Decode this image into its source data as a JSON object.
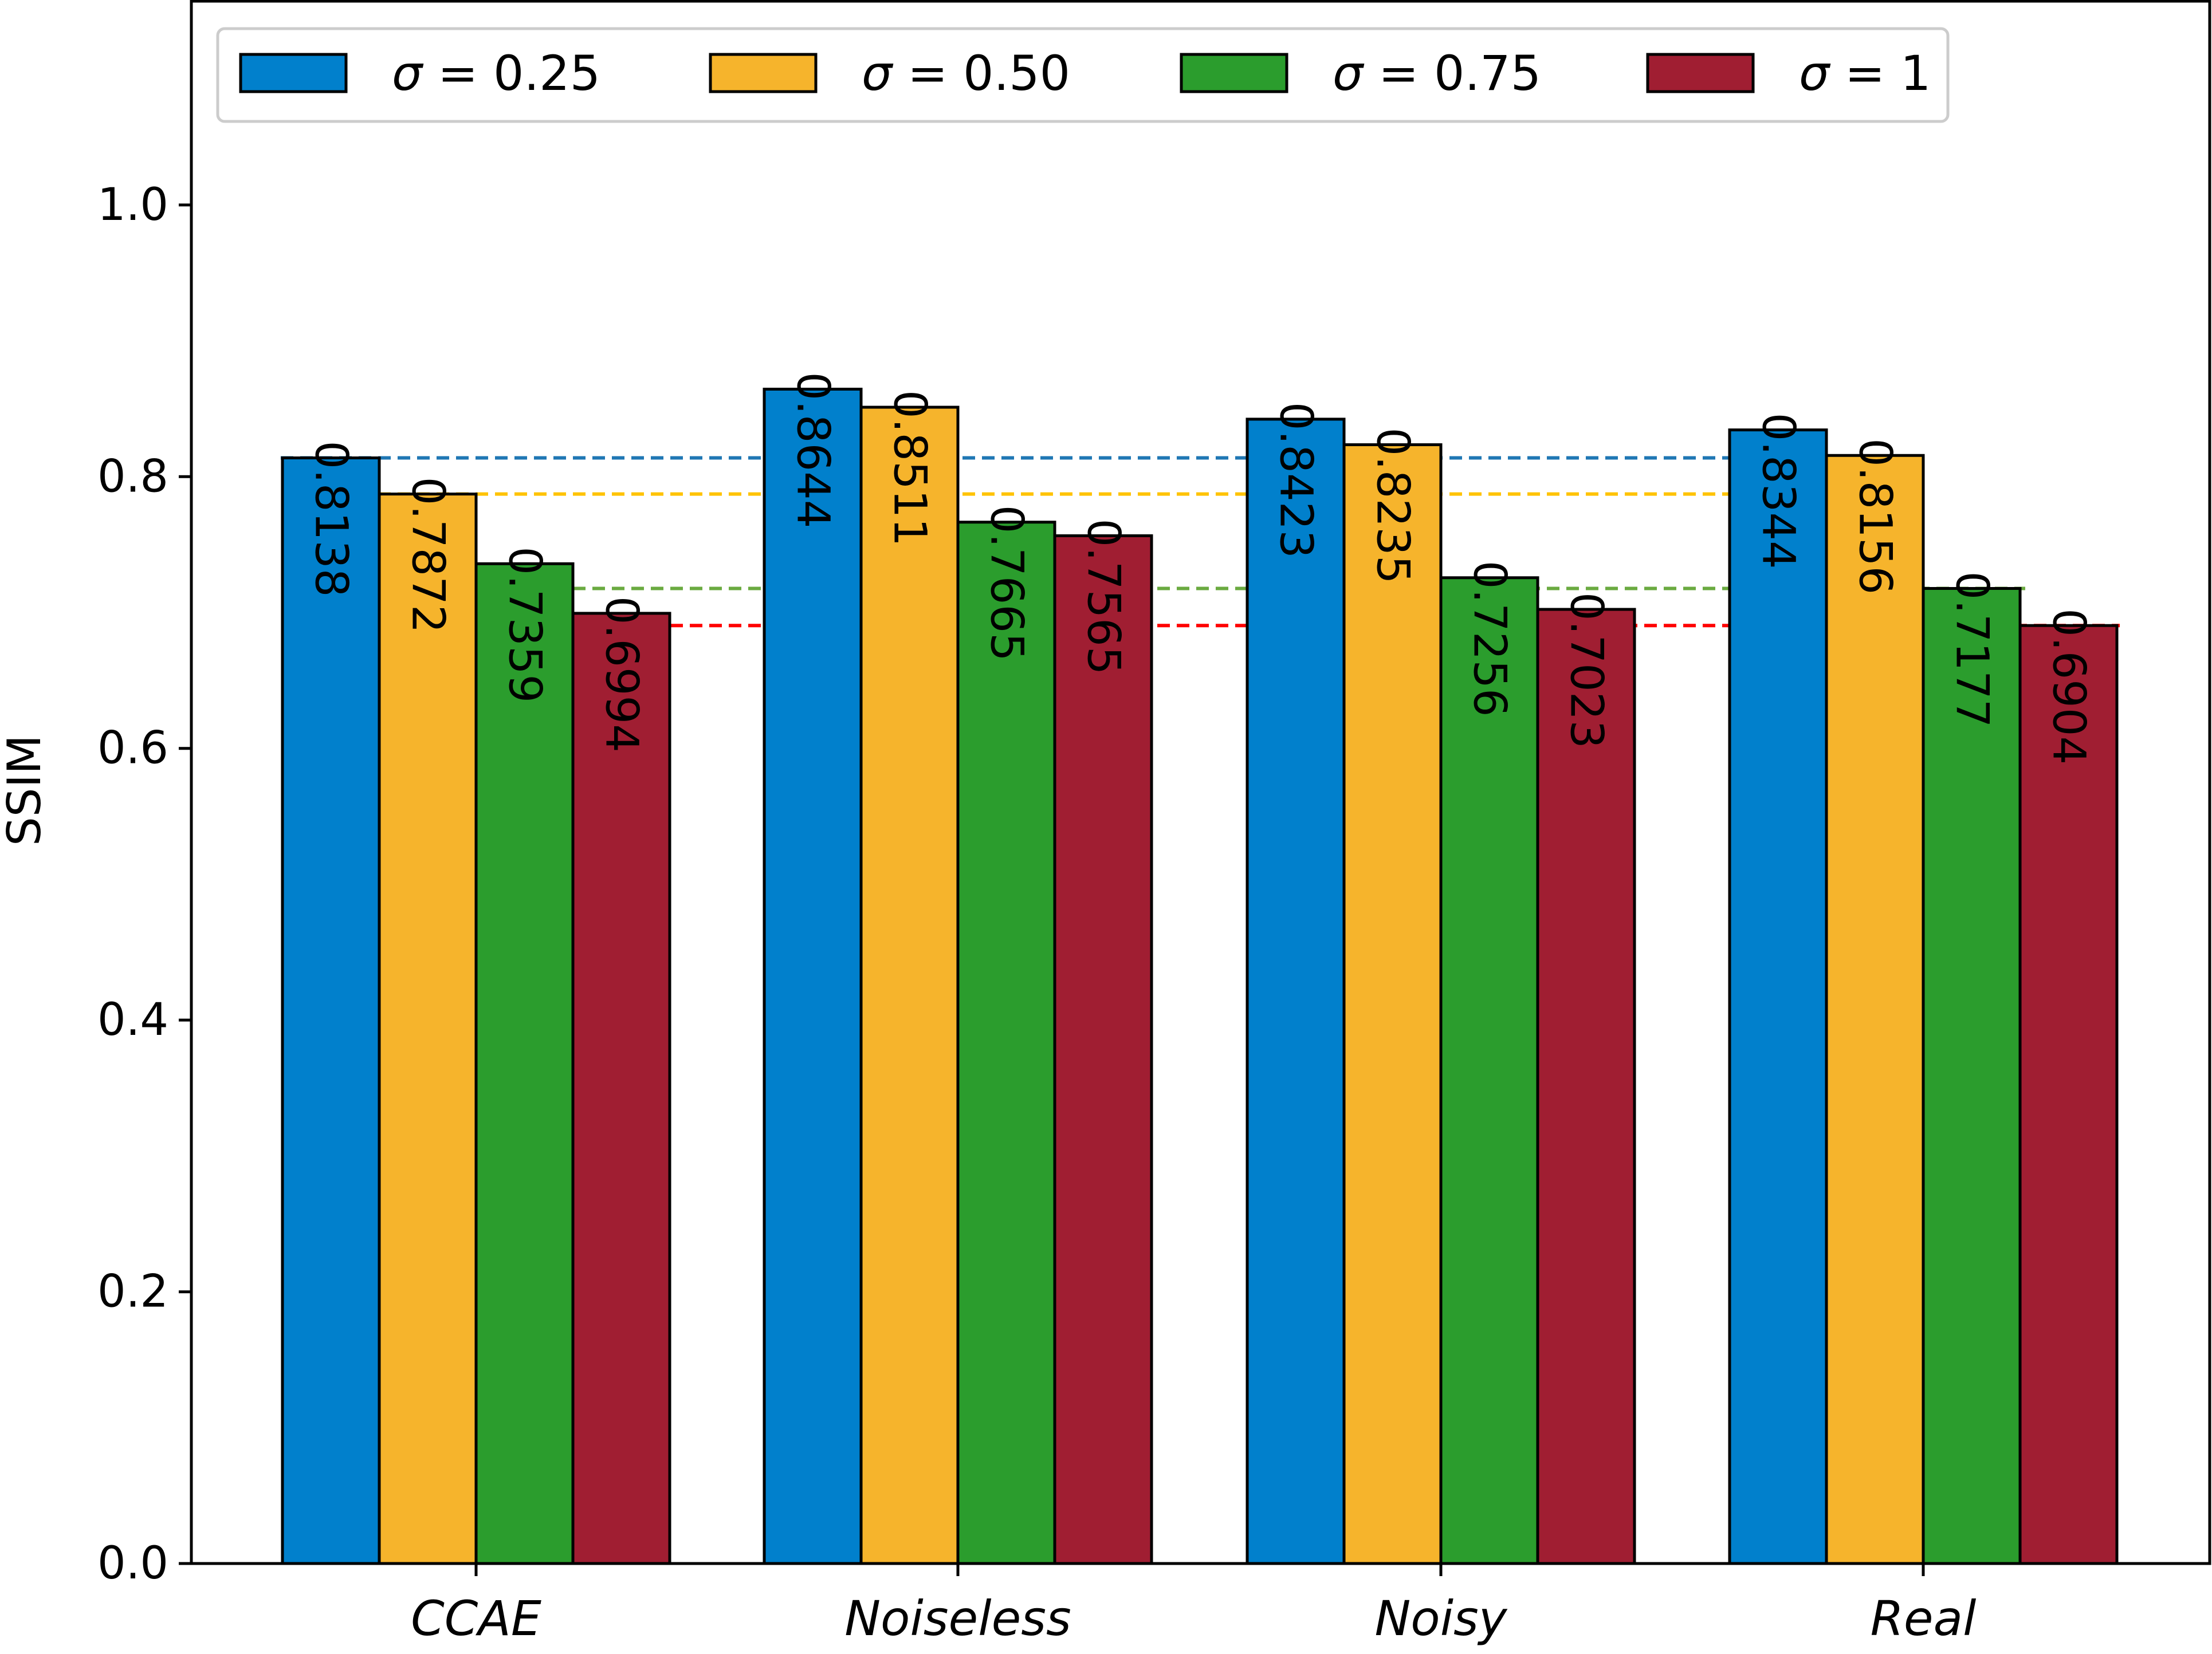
{
  "chart_data": {
    "type": "bar",
    "title": "",
    "xlabel": "",
    "ylabel": "SSIM",
    "ylim": [
      0,
      1.15
    ],
    "yticks": [
      "0.0",
      "0.2",
      "0.4",
      "0.6",
      "0.8",
      "1.0"
    ],
    "legend_position": "top",
    "grid": false,
    "categories": [
      "CCAE",
      "Noiseless",
      "Noisy",
      "Real"
    ],
    "series": [
      {
        "name": "σ = 0.25",
        "symbol": "σ",
        "value_label": "= 0.25",
        "color": "#0180CC",
        "values": [
          0.8138,
          0.8644,
          0.8423,
          0.8344
        ],
        "labels": [
          "0.8138",
          "0.8644",
          "0.8423",
          "0.8344"
        ]
      },
      {
        "name": "σ = 0.50",
        "symbol": "σ",
        "value_label": "= 0.50",
        "color": "#F6B42C",
        "values": [
          0.7872,
          0.8511,
          0.8235,
          0.8156
        ],
        "labels": [
          "0.7872",
          "0.8511",
          "0.8235",
          "0.8156"
        ]
      },
      {
        "name": "σ = 0.75",
        "symbol": "σ",
        "value_label": "= 0.75",
        "color": "#2B9D2D",
        "values": [
          0.7359,
          0.7665,
          0.7256,
          0.7177
        ],
        "labels": [
          "0.7359",
          "0.7665",
          "0.7256",
          "0.7177"
        ]
      },
      {
        "name": "σ = 1",
        "symbol": "σ",
        "value_label": "= 1",
        "color": "#A01E32",
        "values": [
          0.6994,
          0.7565,
          0.7023,
          0.6904
        ],
        "labels": [
          "0.6994",
          "0.7565",
          "0.7023",
          "0.6904"
        ]
      }
    ],
    "reference_lines": [
      {
        "series": "σ = 0.25",
        "value": 0.8138,
        "color": "#1F77B4"
      },
      {
        "series": "σ = 0.50",
        "value": 0.7872,
        "color": "#FFC300"
      },
      {
        "series": "σ = 0.75",
        "value": 0.7177,
        "color": "#6AAA40"
      },
      {
        "series": "σ = 1",
        "value": 0.6904,
        "color": "#FF0000"
      }
    ]
  }
}
